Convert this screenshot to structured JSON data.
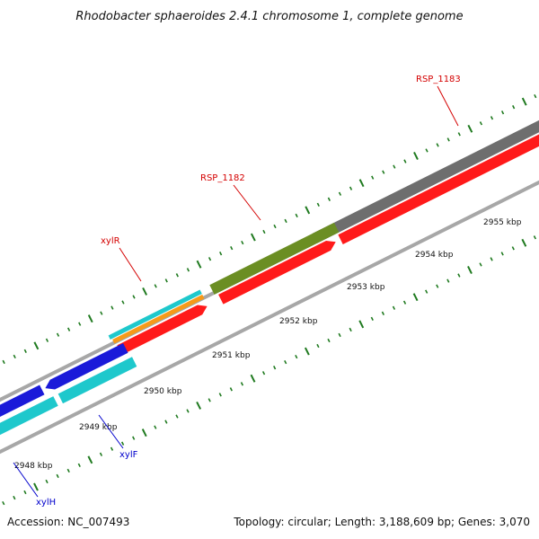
{
  "title": "Rhodobacter sphaeroides 2.4.1 chromosome 1, complete genome",
  "accession": "Accession: NC_007493",
  "summary": "Topology: circular; Length: 3,188,609 bp; Genes: 3,070",
  "colors": {
    "tick": "#1f7a1f",
    "backbone": "#a7a7a7",
    "red_gene": "#ff1a1a",
    "blue_gene": "#1a1ad9",
    "cyan_gene": "#1ec8cc",
    "orange_gene": "#f59a1a",
    "olive_gene": "#6b8e23",
    "gray_gene": "#6e6e6e",
    "red_label": "#d40000",
    "blue_label": "#0000cc"
  },
  "scale_labels": [
    "2948 kbp",
    "2949 kbp",
    "2950 kbp",
    "2951 kbp",
    "2952 kbp",
    "2953 kbp",
    "2954 kbp",
    "2955 kbp"
  ],
  "gene_labels": [
    {
      "text": "RSP_1183",
      "color": "red"
    },
    {
      "text": "RSP_1182",
      "color": "red"
    },
    {
      "text": "xylR",
      "color": "red"
    },
    {
      "text": "xylF",
      "color": "blue"
    },
    {
      "text": "xylH",
      "color": "blue"
    }
  ]
}
